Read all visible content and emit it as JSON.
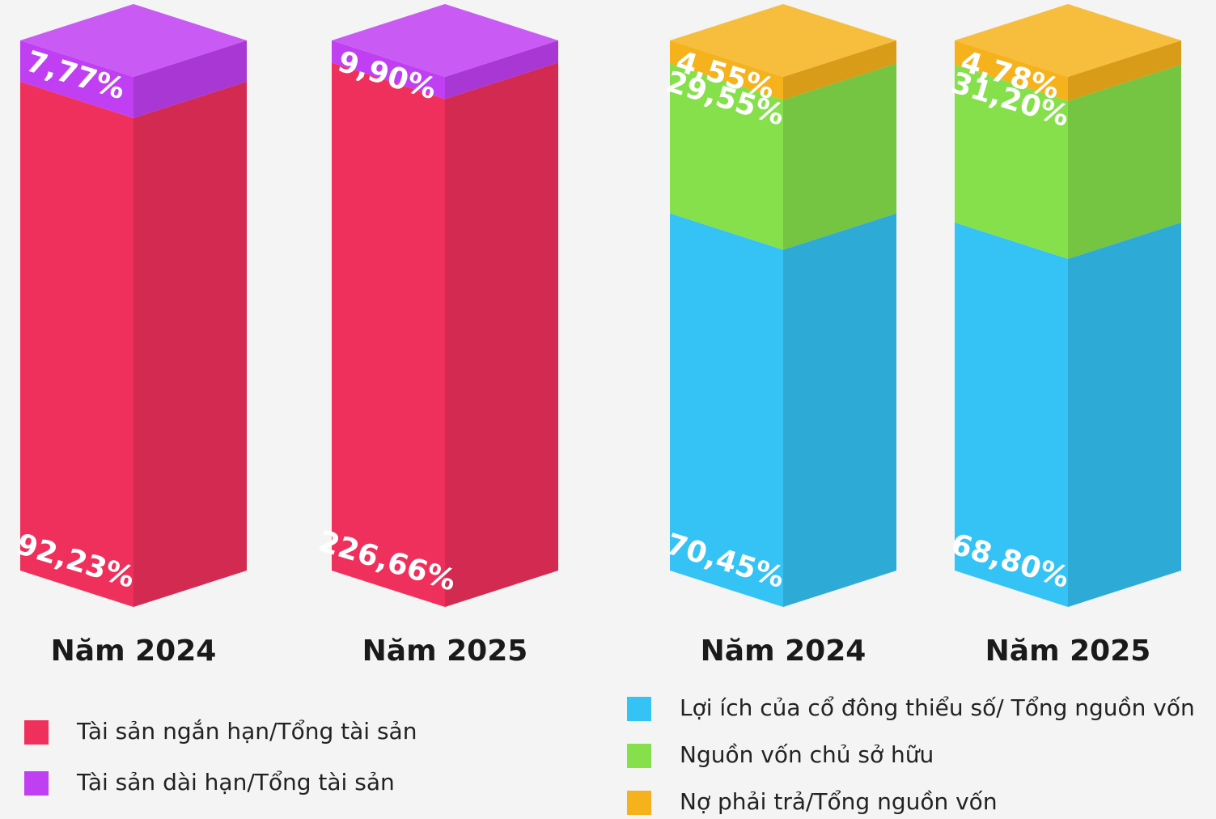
{
  "chart_data": [
    {
      "type": "bar",
      "stacked": true,
      "categories": [
        "Năm 2024",
        "Năm 2025"
      ],
      "series": [
        {
          "name": "Tài sản ngắn hạn/Tổng tài sản",
          "color": "#f0305c",
          "values": [
            92.23,
            226.66
          ],
          "value_labels": [
            "92,23%",
            "226,66%"
          ]
        },
        {
          "name": "Tài sản dài hạn/Tổng tài sản",
          "color": "#c03ff2",
          "values": [
            7.77,
            9.9
          ],
          "value_labels": [
            "7,77%",
            "9,90%"
          ]
        }
      ]
    },
    {
      "type": "bar",
      "stacked": true,
      "categories": [
        "Năm 2024",
        "Năm 2025"
      ],
      "series": [
        {
          "name": "Lợi ích của cổ đông thiểu số/ Tổng nguồn vốn",
          "color": "#35c2f5",
          "values": [
            70.45,
            68.8
          ],
          "value_labels": [
            "70,45%",
            "68,80%"
          ]
        },
        {
          "name": "Nguồn vốn chủ sở hữu",
          "color": "#86e04c",
          "values": [
            29.55,
            31.2
          ],
          "value_labels": [
            "29,55%",
            "31,20%"
          ]
        },
        {
          "name": "Nợ phải trả/Tổng nguồn vốn",
          "color": "#f6b21c",
          "values": [
            4.55,
            4.78
          ],
          "value_labels": [
            "4,55%",
            "4,78%"
          ]
        }
      ]
    }
  ]
}
